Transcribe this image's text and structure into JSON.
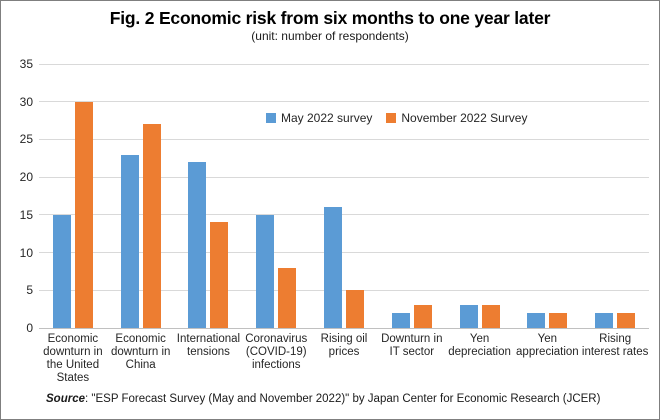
{
  "header": {
    "title": "Fig. 2 Economic risk from six months to one year later",
    "subtitle": "(unit: number of respondents)"
  },
  "source": {
    "label": "Source",
    "text": ": \"ESP Forecast Survey (May and November 2022)\" by Japan Center for Economic Research (JCER)"
  },
  "chart_data": {
    "type": "bar",
    "categories": [
      "Economic downturn in the United States",
      "Economic downturn in China",
      "International tensions",
      "Coronavirus (COVID-19) infections",
      "Rising oil prices",
      "Downturn in IT sector",
      "Yen depreciation",
      "Yen appreciation",
      "Rising interest rates"
    ],
    "series": [
      {
        "name": "May 2022 survey",
        "color": "#5B9BD5",
        "values": [
          15,
          23,
          22,
          15,
          16,
          2,
          3,
          2,
          2
        ]
      },
      {
        "name": "November 2022 Survey",
        "color": "#ED7D31",
        "values": [
          30,
          27,
          14,
          8,
          5,
          3,
          3,
          2,
          2
        ]
      }
    ],
    "ylim": [
      0,
      35
    ],
    "yticks": [
      0,
      5,
      10,
      15,
      20,
      25,
      30,
      35
    ],
    "grid": true,
    "legend_position": "inside-top-right",
    "colors": {
      "grid": "#D9D9D9",
      "axis": "#C0C0C0",
      "tick_label": "#262626"
    }
  }
}
